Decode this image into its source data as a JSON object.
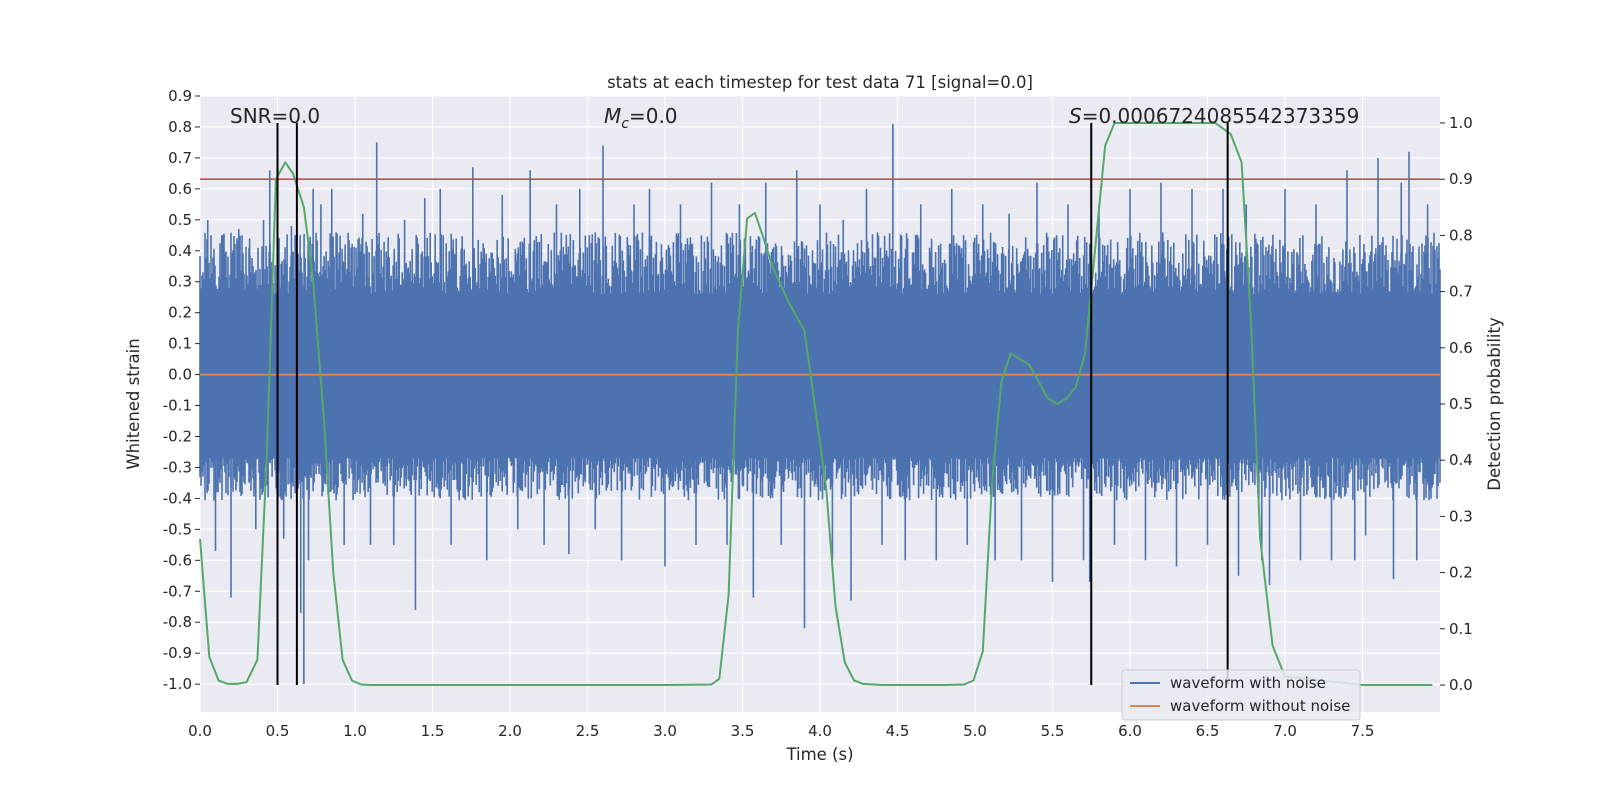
{
  "chart_data": {
    "type": "line",
    "title": "stats at each timestep for test data 71 [signal=0.0]",
    "xlabel": "Time (s)",
    "ylabel": "Whitened strain",
    "y2label": "Detection probability",
    "xlim": [
      0.0,
      8.0
    ],
    "ylim": [
      -1.09,
      0.9
    ],
    "y2lim": [
      -0.048,
      1.048
    ],
    "xticks": [
      "0.0",
      "0.5",
      "1.0",
      "1.5",
      "2.0",
      "2.5",
      "3.0",
      "3.5",
      "4.0",
      "4.5",
      "5.0",
      "5.5",
      "6.0",
      "6.5",
      "7.0",
      "7.5"
    ],
    "yticks": [
      "-1.0",
      "-0.9",
      "-0.8",
      "-0.7",
      "-0.6",
      "-0.5",
      "-0.4",
      "-0.3",
      "-0.2",
      "-0.1",
      "0.0",
      "0.1",
      "0.2",
      "0.3",
      "0.4",
      "0.5",
      "0.6",
      "0.7",
      "0.8",
      "0.9"
    ],
    "y2ticks": [
      "0.0",
      "0.1",
      "0.2",
      "0.3",
      "0.4",
      "0.5",
      "0.6",
      "0.7",
      "0.8",
      "0.9",
      "1.0"
    ],
    "grid": true,
    "legend_position": "lower right",
    "annotations": {
      "snr": "SNR=0.0",
      "mc_symbol": "M",
      "mc_sub": "c",
      "mc_value": "=0.0",
      "s_symbol": "S",
      "s_value": "=0.0006724085542373359"
    },
    "series": [
      {
        "name": "waveform with noise",
        "color": "#4c72b0",
        "kind": "noise",
        "typical_range": [
          -0.4,
          0.45
        ],
        "spikes": [
          {
            "x": 0.05,
            "y": 0.5
          },
          {
            "x": 0.1,
            "y": -0.57
          },
          {
            "x": 0.14,
            "y": 0.45
          },
          {
            "x": 0.2,
            "y": -0.72
          },
          {
            "x": 0.25,
            "y": 0.47
          },
          {
            "x": 0.32,
            "y": 0.44
          },
          {
            "x": 0.36,
            "y": -0.5
          },
          {
            "x": 0.41,
            "y": 0.5
          },
          {
            "x": 0.45,
            "y": 0.66
          },
          {
            "x": 0.5,
            "y": 0.58
          },
          {
            "x": 0.54,
            "y": -0.53
          },
          {
            "x": 0.59,
            "y": 0.48
          },
          {
            "x": 0.65,
            "y": -0.77
          },
          {
            "x": 0.67,
            "y": -1.0
          },
          {
            "x": 0.7,
            "y": -0.6
          },
          {
            "x": 0.73,
            "y": 0.6
          },
          {
            "x": 0.78,
            "y": 0.55
          },
          {
            "x": 0.85,
            "y": 0.6
          },
          {
            "x": 0.93,
            "y": -0.55
          },
          {
            "x": 1.05,
            "y": 0.52
          },
          {
            "x": 1.1,
            "y": -0.55
          },
          {
            "x": 1.14,
            "y": 0.75
          },
          {
            "x": 1.25,
            "y": -0.55
          },
          {
            "x": 1.32,
            "y": 0.5
          },
          {
            "x": 1.39,
            "y": -0.76
          },
          {
            "x": 1.45,
            "y": 0.57
          },
          {
            "x": 1.55,
            "y": 0.6
          },
          {
            "x": 1.62,
            "y": -0.55
          },
          {
            "x": 1.76,
            "y": 0.67
          },
          {
            "x": 1.85,
            "y": -0.6
          },
          {
            "x": 1.95,
            "y": 0.58
          },
          {
            "x": 2.05,
            "y": -0.5
          },
          {
            "x": 2.13,
            "y": 0.66
          },
          {
            "x": 2.22,
            "y": -0.55
          },
          {
            "x": 2.3,
            "y": 0.55
          },
          {
            "x": 2.38,
            "y": -0.58
          },
          {
            "x": 2.45,
            "y": 0.6
          },
          {
            "x": 2.55,
            "y": -0.5
          },
          {
            "x": 2.6,
            "y": 0.74
          },
          {
            "x": 2.72,
            "y": -0.6
          },
          {
            "x": 2.8,
            "y": 0.55
          },
          {
            "x": 2.9,
            "y": 0.6
          },
          {
            "x": 3.0,
            "y": -0.62
          },
          {
            "x": 3.1,
            "y": 0.55
          },
          {
            "x": 3.2,
            "y": -0.55
          },
          {
            "x": 3.3,
            "y": 0.62
          },
          {
            "x": 3.4,
            "y": -0.55
          },
          {
            "x": 3.48,
            "y": 0.55
          },
          {
            "x": 3.57,
            "y": -0.72
          },
          {
            "x": 3.65,
            "y": 0.62
          },
          {
            "x": 3.75,
            "y": -0.55
          },
          {
            "x": 3.85,
            "y": 0.66
          },
          {
            "x": 3.9,
            "y": -0.82
          },
          {
            "x": 4.0,
            "y": 0.55
          },
          {
            "x": 4.08,
            "y": -0.6
          },
          {
            "x": 4.15,
            "y": 0.5
          },
          {
            "x": 4.2,
            "y": -0.73
          },
          {
            "x": 4.3,
            "y": 0.6
          },
          {
            "x": 4.4,
            "y": -0.55
          },
          {
            "x": 4.47,
            "y": 0.81
          },
          {
            "x": 4.55,
            "y": -0.6
          },
          {
            "x": 4.65,
            "y": 0.55
          },
          {
            "x": 4.75,
            "y": -0.6
          },
          {
            "x": 4.85,
            "y": 0.6
          },
          {
            "x": 4.95,
            "y": -0.55
          },
          {
            "x": 5.05,
            "y": 0.55
          },
          {
            "x": 5.13,
            "y": -0.6
          },
          {
            "x": 5.22,
            "y": 0.52
          },
          {
            "x": 5.3,
            "y": -0.6
          },
          {
            "x": 5.4,
            "y": 0.62
          },
          {
            "x": 5.5,
            "y": -0.67
          },
          {
            "x": 5.6,
            "y": 0.55
          },
          {
            "x": 5.7,
            "y": -0.6
          },
          {
            "x": 5.74,
            "y": -0.67
          },
          {
            "x": 5.8,
            "y": 0.55
          },
          {
            "x": 5.9,
            "y": -0.55
          },
          {
            "x": 6.0,
            "y": 0.6
          },
          {
            "x": 6.1,
            "y": -0.6
          },
          {
            "x": 6.2,
            "y": 0.62
          },
          {
            "x": 6.3,
            "y": -0.62
          },
          {
            "x": 6.4,
            "y": 0.6
          },
          {
            "x": 6.5,
            "y": -0.55
          },
          {
            "x": 6.6,
            "y": 0.6
          },
          {
            "x": 6.7,
            "y": -0.65
          },
          {
            "x": 6.75,
            "y": 0.55
          },
          {
            "x": 6.85,
            "y": -0.6
          },
          {
            "x": 6.9,
            "y": -0.68
          },
          {
            "x": 7.0,
            "y": 0.6
          },
          {
            "x": 7.1,
            "y": -0.6
          },
          {
            "x": 7.2,
            "y": 0.55
          },
          {
            "x": 7.3,
            "y": -0.6
          },
          {
            "x": 7.4,
            "y": 0.66
          },
          {
            "x": 7.45,
            "y": -0.6
          },
          {
            "x": 7.52,
            "y": -0.52
          },
          {
            "x": 7.6,
            "y": 0.7
          },
          {
            "x": 7.7,
            "y": -0.66
          },
          {
            "x": 7.75,
            "y": 0.62
          },
          {
            "x": 7.8,
            "y": 0.72
          },
          {
            "x": 7.85,
            "y": -0.6
          },
          {
            "x": 7.92,
            "y": 0.55
          }
        ]
      },
      {
        "name": "waveform without noise",
        "color": "#dd8452",
        "kind": "constant",
        "y": 0.0
      },
      {
        "name": "",
        "color": "#55a868",
        "kind": "probability",
        "axis": "right",
        "x": [
          0.0,
          0.06,
          0.12,
          0.18,
          0.24,
          0.3,
          0.37,
          0.43,
          0.49,
          0.55,
          0.6,
          0.67,
          0.73,
          0.8,
          0.86,
          0.92,
          0.98,
          1.04,
          1.1,
          1.2,
          1.5,
          2.0,
          2.5,
          3.0,
          3.3,
          3.35,
          3.41,
          3.47,
          3.53,
          3.58,
          3.63,
          3.7,
          3.8,
          3.9,
          3.97,
          4.04,
          4.1,
          4.16,
          4.22,
          4.28,
          4.4,
          4.6,
          4.8,
          4.93,
          4.99,
          5.05,
          5.11,
          5.17,
          5.23,
          5.29,
          5.35,
          5.41,
          5.47,
          5.53,
          5.59,
          5.65,
          5.71,
          5.78,
          5.84,
          5.9,
          6.0,
          6.2,
          6.4,
          6.55,
          6.6,
          6.65,
          6.72,
          6.78,
          6.84,
          6.92,
          7.0,
          7.5,
          7.95
        ],
        "y": [
          0.26,
          0.05,
          0.008,
          0.002,
          0.002,
          0.005,
          0.045,
          0.4,
          0.9,
          0.93,
          0.91,
          0.85,
          0.72,
          0.47,
          0.2,
          0.045,
          0.008,
          0.001,
          0.0,
          0.0,
          0.0,
          0.0,
          0.0,
          0.0,
          0.001,
          0.011,
          0.16,
          0.63,
          0.83,
          0.84,
          0.8,
          0.74,
          0.68,
          0.63,
          0.49,
          0.35,
          0.14,
          0.04,
          0.008,
          0.002,
          0.0,
          0.0,
          0.0,
          0.001,
          0.008,
          0.06,
          0.36,
          0.54,
          0.59,
          0.58,
          0.57,
          0.54,
          0.51,
          0.5,
          0.51,
          0.53,
          0.59,
          0.79,
          0.96,
          1.0,
          1.0,
          1.0,
          1.0,
          1.0,
          0.99,
          0.98,
          0.93,
          0.65,
          0.26,
          0.07,
          0.015,
          0.0,
          0.0
        ]
      }
    ],
    "threshold_line": {
      "axis": "right",
      "y": 0.9,
      "color": "#c44e52"
    },
    "vertical_lines": [
      {
        "x": 0.5,
        "color": "#000000"
      },
      {
        "x": 0.625,
        "color": "#000000"
      },
      {
        "x": 5.75,
        "color": "#000000"
      },
      {
        "x": 6.63,
        "color": "#000000"
      }
    ]
  }
}
